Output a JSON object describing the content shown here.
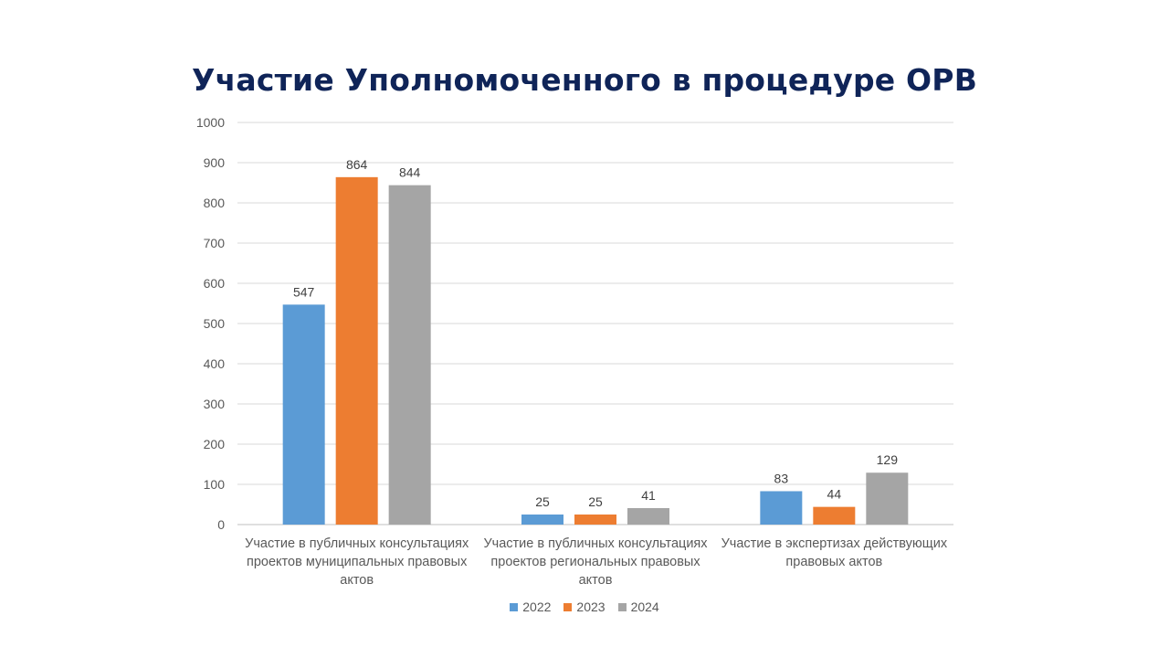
{
  "slide": {
    "title": "Участие Уполномоченного в процедуре ОРВ"
  },
  "chart_data": {
    "type": "bar",
    "title": "Участие Уполномоченного в процедуре ОРВ",
    "categories": [
      [
        "Участие в публичных консультациях",
        "проектов муниципальных правовых",
        "актов"
      ],
      [
        "Участие в публичных консультациях",
        "проектов региональных правовых",
        "актов"
      ],
      [
        "Участие в экспертизах действующих",
        "правовых актов"
      ]
    ],
    "series": [
      {
        "name": "2022",
        "color": "#5b9bd5",
        "values": [
          547,
          25,
          83
        ]
      },
      {
        "name": "2023",
        "color": "#ed7d31",
        "values": [
          864,
          25,
          44
        ]
      },
      {
        "name": "2024",
        "color": "#a5a5a5",
        "values": [
          844,
          41,
          129
        ]
      }
    ],
    "ylim": [
      0,
      1000
    ],
    "yticks": [
      0,
      100,
      200,
      300,
      400,
      500,
      600,
      700,
      800,
      900,
      1000
    ],
    "grid": true,
    "legend_position": "bottom",
    "data_labels": true
  }
}
